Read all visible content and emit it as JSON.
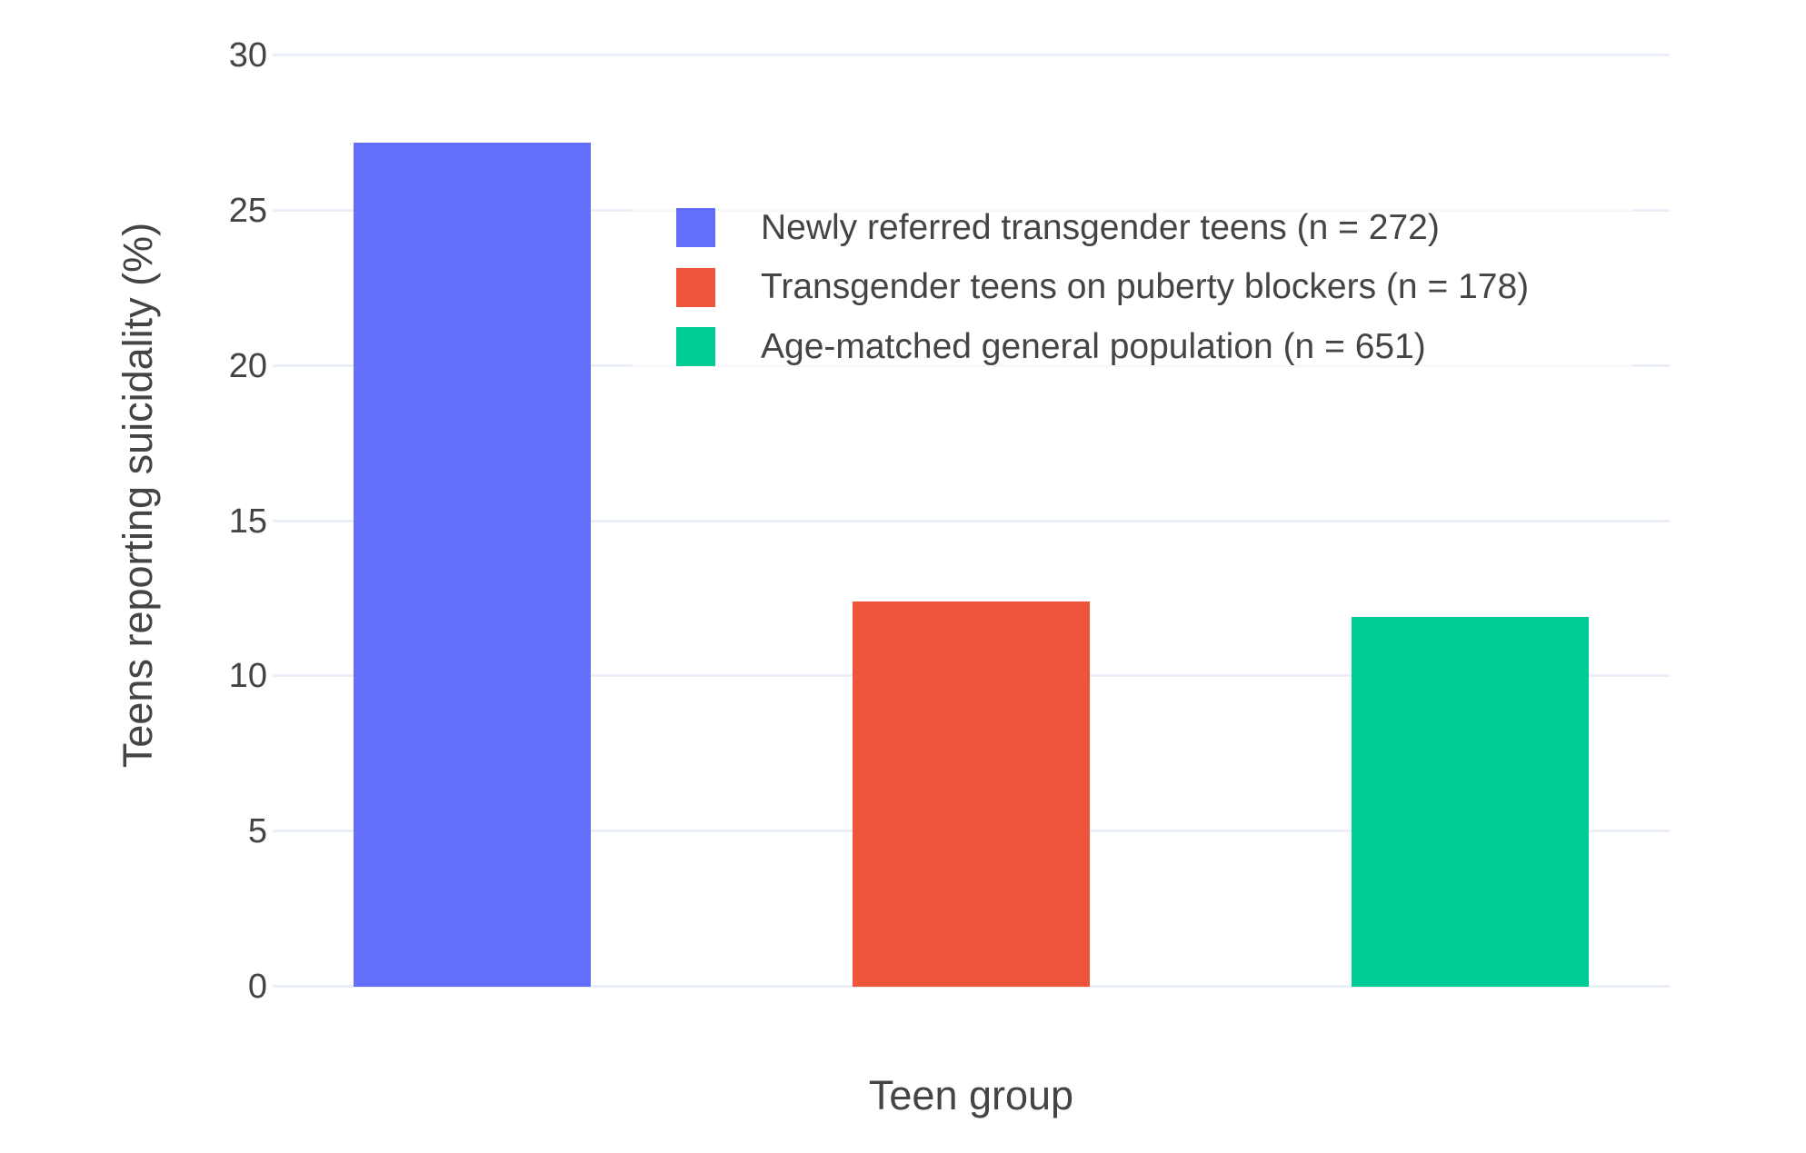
{
  "chart_data": {
    "type": "bar",
    "title": "",
    "xlabel": "Teen group",
    "ylabel": "Teens reporting suicidality (%)",
    "categories": [
      "Newly referred transgender teens (n = 272)",
      "Transgender teens on puberty blockers (n = 178)",
      "Age-matched general population (n = 651)"
    ],
    "series": [
      {
        "name": "Newly referred transgender teens (n = 272)",
        "value": 27.2,
        "color": "#636EFA"
      },
      {
        "name": "Transgender teens on puberty blockers (n = 178)",
        "value": 12.4,
        "color": "#EF553B"
      },
      {
        "name": "Age-matched general population (n = 651)",
        "value": 11.9,
        "color": "#00CC96"
      }
    ],
    "ylim": [
      0,
      30
    ],
    "yticks": [
      0,
      5,
      10,
      15,
      20,
      25,
      30
    ],
    "grid": true,
    "legend_position": "inside-top-right",
    "colors": {
      "grid": "#EBF0F8",
      "text": "#444444",
      "background": "#FFFFFF"
    }
  }
}
